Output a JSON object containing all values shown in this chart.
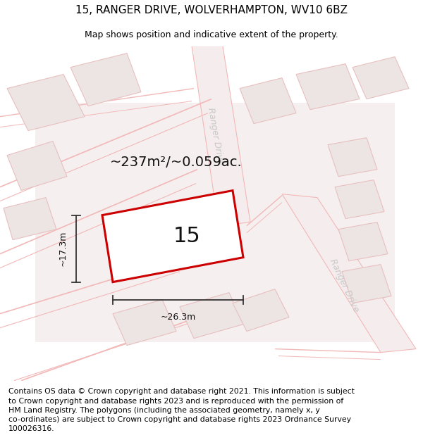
{
  "title": "15, RANGER DRIVE, WOLVERHAMPTON, WV10 6BZ",
  "subtitle": "Map shows position and indicative extent of the property.",
  "footer": "Contains OS data © Crown copyright and database right 2021. This information is subject\nto Crown copyright and database rights 2023 and is reproduced with the permission of\nHM Land Registry. The polygons (including the associated geometry, namely x, y\nco-ordinates) are subject to Crown copyright and database rights 2023 Ordnance Survey\n100026316.",
  "area_text": "~237m²/~0.059ac.",
  "number_text": "15",
  "width_label": "~26.3m",
  "height_label": "~17.3m",
  "road_label": "Ranger Drive",
  "title_fontsize": 11,
  "subtitle_fontsize": 9,
  "footer_fontsize": 7.8,
  "road_color": "#f2b8b8",
  "road_fill": "#f5eded",
  "bld_color": "#e8c0c0",
  "bld_fill": "#ede4e4",
  "map_bg": "#ede8e8",
  "prop_color": "#cc0000",
  "prop_fill": "#ffffff",
  "dim_color": "#333333",
  "text_color": "#111111",
  "road_label_color": "#c8c8c8"
}
